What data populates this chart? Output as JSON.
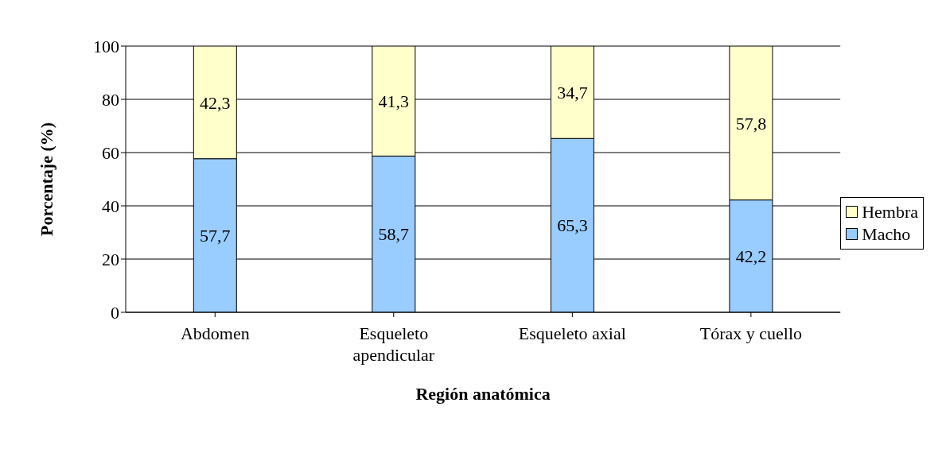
{
  "chart_data": {
    "type": "bar",
    "stacked": true,
    "xlabel": "Región anatómica",
    "ylabel": "Porcentaje (%)",
    "categories": [
      "Abdomen",
      "Esqueleto apendicular",
      "Esqueleto axial",
      "Tórax y cuello"
    ],
    "series": [
      {
        "name": "Macho",
        "color": "#99ccff",
        "values": [
          57.7,
          58.7,
          65.3,
          42.2
        ],
        "value_labels": [
          "57,7",
          "58,7",
          "65,3",
          "42,2"
        ]
      },
      {
        "name": "Hembra",
        "color": "#ffffcc",
        "values": [
          42.3,
          41.3,
          34.7,
          57.8
        ],
        "value_labels": [
          "42,3",
          "41,3",
          "34,7",
          "57,8"
        ]
      }
    ],
    "ylim": [
      0,
      100
    ],
    "yticks": [
      0,
      20,
      40,
      60,
      80,
      100
    ],
    "grid": "y",
    "legend": "right"
  }
}
